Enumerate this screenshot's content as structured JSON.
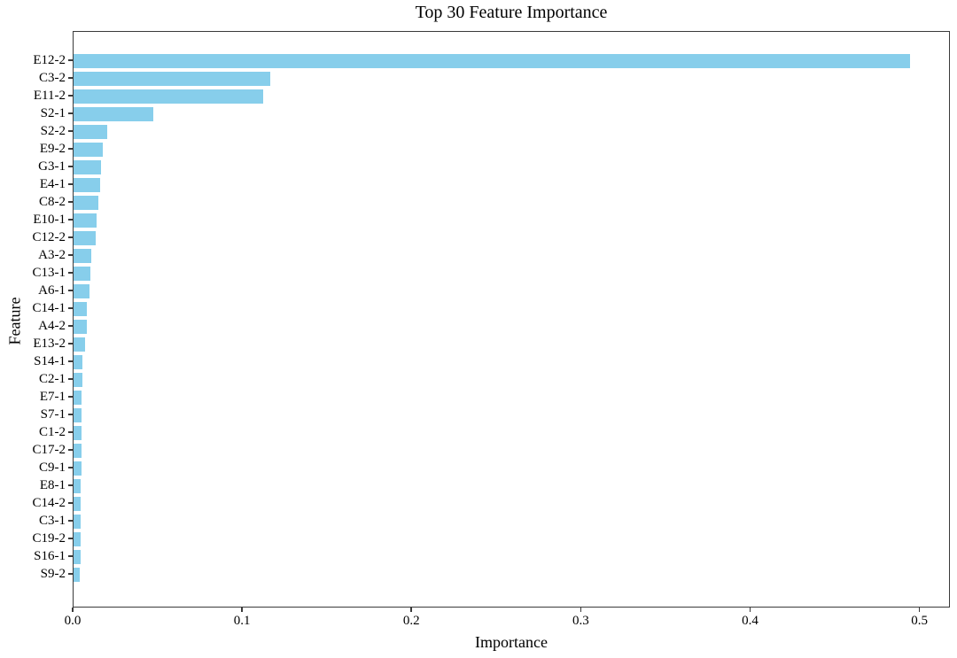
{
  "figure": {
    "background": "#ffffff"
  },
  "chart_data": {
    "type": "bar",
    "orientation": "horizontal",
    "title": "Top 30 Feature Importance",
    "xlabel": "Importance",
    "ylabel": "Feature",
    "categories": [
      "E12-2",
      "C3-2",
      "E11-2",
      "S2-1",
      "S2-2",
      "E9-2",
      "G3-1",
      "E4-1",
      "C8-2",
      "E10-1",
      "C12-2",
      "A3-2",
      "C13-1",
      "A6-1",
      "C14-1",
      "A4-2",
      "E13-2",
      "S14-1",
      "C2-1",
      "E7-1",
      "S7-1",
      "C1-2",
      "C17-2",
      "C9-1",
      "E8-1",
      "C14-2",
      "C3-1",
      "C19-2",
      "S16-1",
      "S9-2"
    ],
    "values": [
      0.494,
      0.116,
      0.112,
      0.047,
      0.02,
      0.017,
      0.0162,
      0.0157,
      0.0145,
      0.0134,
      0.0132,
      0.0105,
      0.0101,
      0.0093,
      0.0079,
      0.0077,
      0.0066,
      0.0052,
      0.005,
      0.0049,
      0.0048,
      0.0047,
      0.0046,
      0.0045,
      0.0044,
      0.0043,
      0.0042,
      0.0041,
      0.004,
      0.0036
    ],
    "xlim": [
      0,
      0.518
    ],
    "xticks": [
      {
        "label": "0.0",
        "value": 0.0
      },
      {
        "label": "0.1",
        "value": 0.1
      },
      {
        "label": "0.2",
        "value": 0.2
      },
      {
        "label": "0.3",
        "value": 0.3
      },
      {
        "label": "0.4",
        "value": 0.4
      },
      {
        "label": "0.5",
        "value": 0.5
      }
    ],
    "bar_color": "#87CEEB",
    "axis_color": "#3a3a3a",
    "text_color": "#000000",
    "grid": false
  }
}
